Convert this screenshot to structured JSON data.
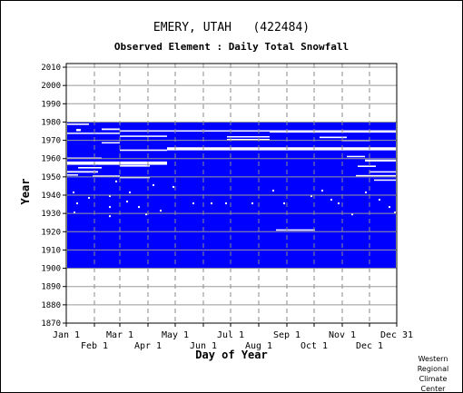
{
  "chart_data": {
    "type": "heatmap",
    "title": "EMERY, UTAH   (422484)",
    "subtitle": "Observed Element : Daily Total Snowfall",
    "xlabel": "Day of Year",
    "ylabel": "Year",
    "xlim": [
      1,
      365
    ],
    "ylim": [
      1870,
      2012
    ],
    "x_ticks_upper": [
      "Jan 1",
      "Mar 1",
      "May 1",
      "Jul 1",
      "Sep 1",
      "Nov 1",
      "Dec 31"
    ],
    "x_ticks_lower": [
      "Feb 1",
      "Apr 1",
      "Jun 1",
      "Aug 1",
      "Oct 1",
      "Dec 1"
    ],
    "y_ticks": [
      1870,
      1880,
      1890,
      1900,
      1910,
      1920,
      1930,
      1940,
      1950,
      1960,
      1970,
      1980,
      1990,
      2000,
      2010
    ],
    "grid": true,
    "data_color": "#0000ff",
    "background_color": "#ffffff",
    "record_span_years": [
      1900,
      1980
    ]
  },
  "credit": [
    "Western",
    "Regional",
    "Climate",
    "Center"
  ]
}
